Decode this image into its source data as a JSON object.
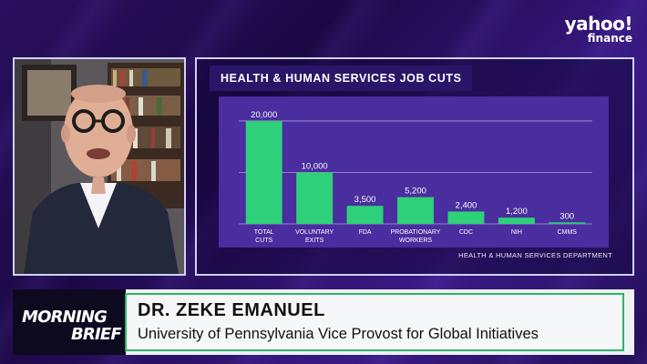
{
  "logo": {
    "line1": "yahoo!",
    "line2": "finance"
  },
  "chart_data": {
    "type": "bar",
    "title": "HEALTH & HUMAN SERVICES JOB CUTS",
    "categories": [
      [
        "TOTAL",
        "CUTS"
      ],
      [
        "VOLUNTARY",
        "EXITS"
      ],
      [
        "FDA"
      ],
      [
        "PROBATIONARY",
        "WORKERS"
      ],
      [
        "CDC"
      ],
      [
        "NIH"
      ],
      [
        "CMMS"
      ]
    ],
    "values": [
      20000,
      10000,
      3500,
      5200,
      2400,
      1200,
      300
    ],
    "value_labels": [
      "20,000",
      "10,000",
      "3,500",
      "5,200",
      "2,400",
      "1,200",
      "300"
    ],
    "ylim": [
      0,
      23000
    ],
    "grid": true,
    "bar_color": "#2fd07a",
    "source": "HEALTH & HUMAN SERVICES DEPARTMENT"
  },
  "lower_third": {
    "show_line1": "MORNING",
    "show_line2": "BRIEF",
    "name": "DR. ZEKE EMANUEL",
    "title": "University of Pennsylvania Vice Provost for Global Initiatives",
    "accent": "#2fb36a"
  }
}
